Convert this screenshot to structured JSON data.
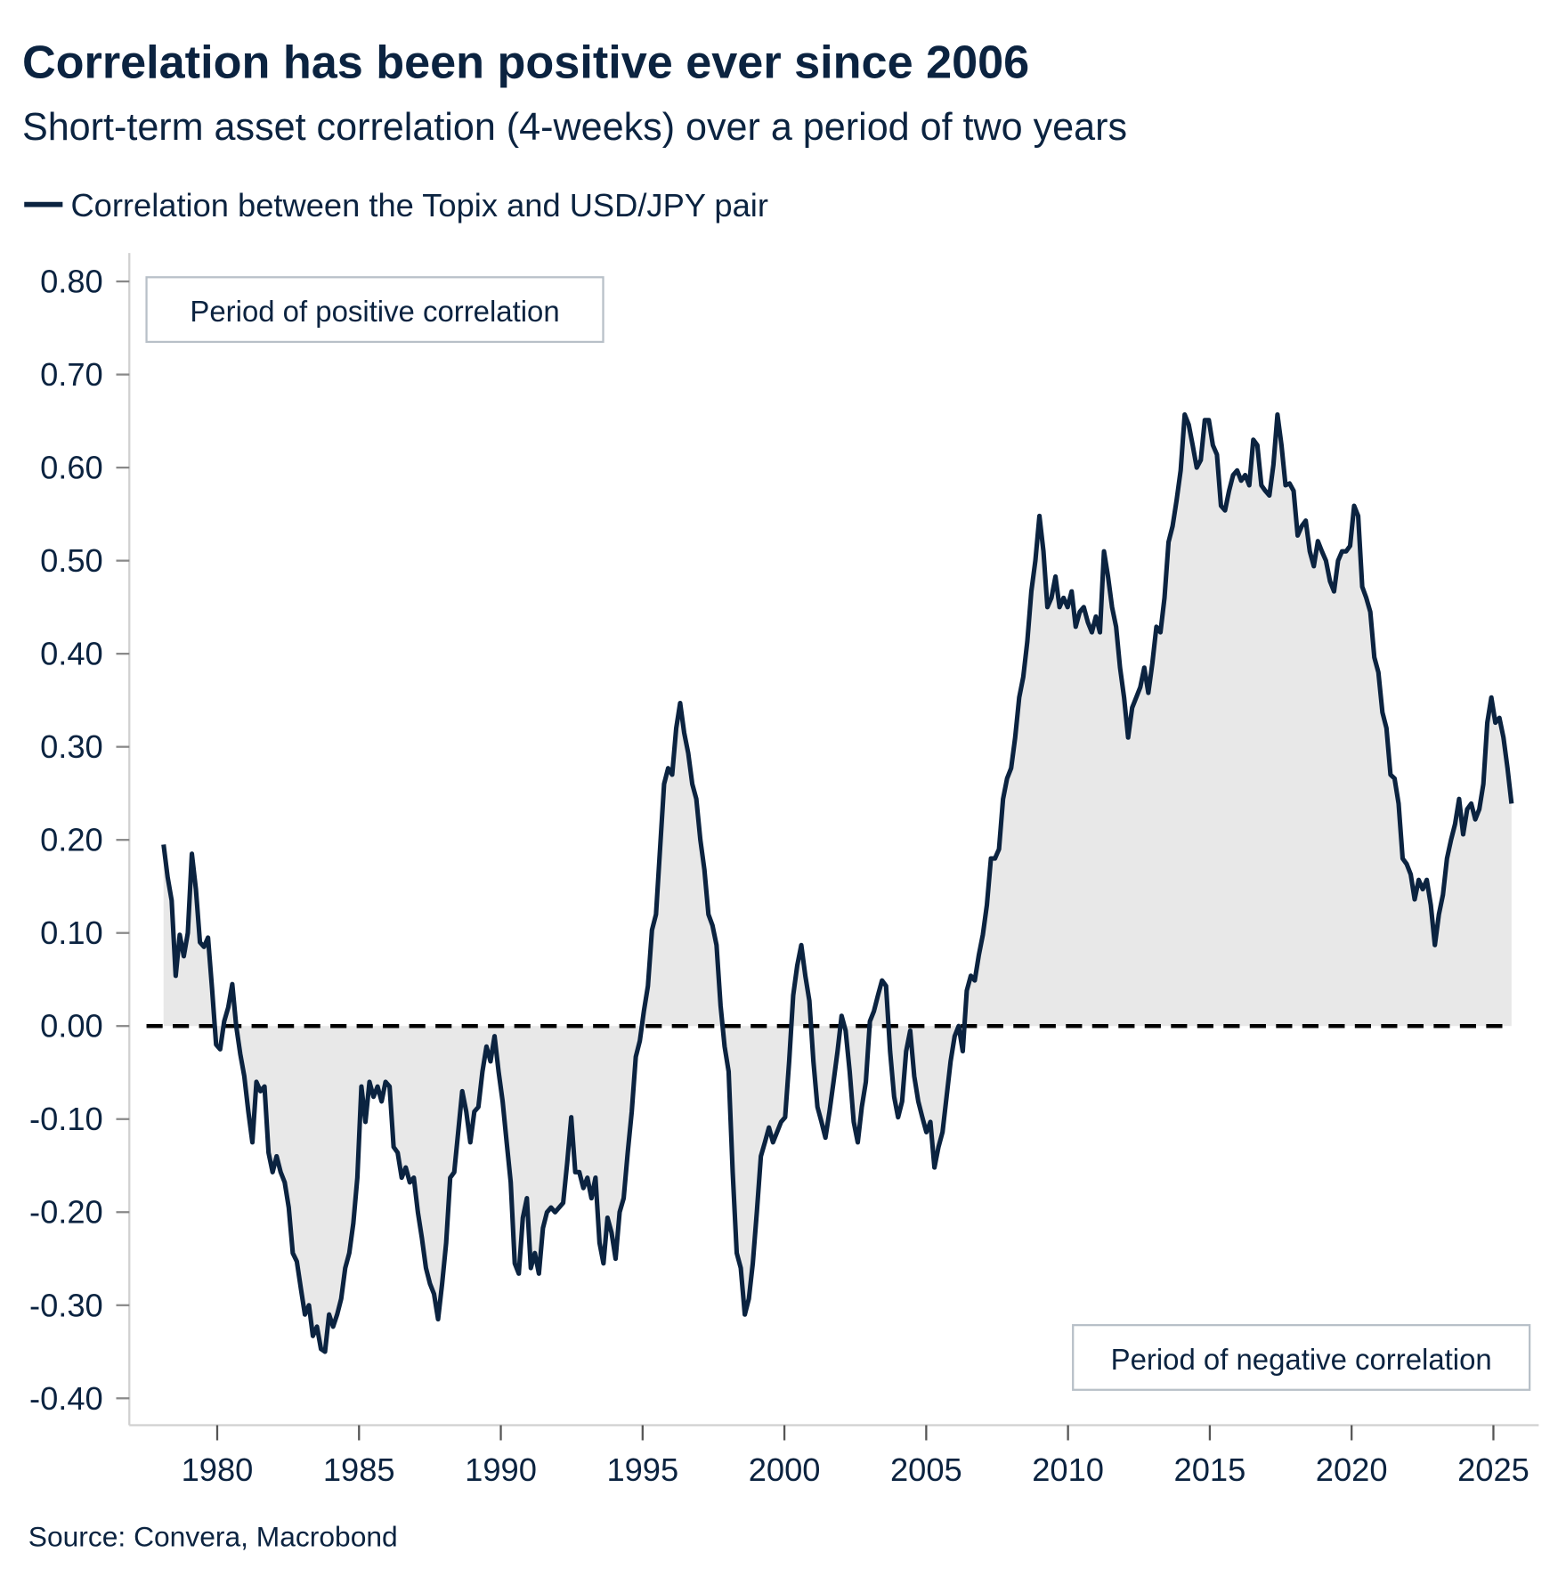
{
  "title": "Correlation has been positive ever since 2006",
  "subtitle": "Short-term asset correlation (4-weeks) over a period of two years",
  "source": "Source: Convera, Macrobond",
  "colors": {
    "line": "#0b2340",
    "fill": "#e8e8e8",
    "zero_line": "#000000",
    "axis": "#d0d0d0",
    "annotation_border": "#b8c0c8"
  },
  "chart_data": {
    "type": "area",
    "title": "Correlation has been positive ever since 2006",
    "xlabel": "",
    "ylabel": "",
    "xlim": [
      1978,
      2026
    ],
    "ylim": [
      -0.4,
      0.8
    ],
    "grid": false,
    "legend_placement": "top-left",
    "x_ticks": [
      "1980",
      "1985",
      "1990",
      "1995",
      "2000",
      "2005",
      "2010",
      "2015",
      "2020",
      "2025"
    ],
    "y_ticks": [
      "0.80",
      "0.70",
      "0.60",
      "0.50",
      "0.40",
      "0.30",
      "0.20",
      "0.10",
      "0.00",
      "-0.10",
      "-0.20",
      "-0.30",
      "-0.40"
    ],
    "reference_line": {
      "y": 0,
      "style": "dashed"
    },
    "annotations": [
      "Period of positive correlation",
      "Period of negative correlation"
    ],
    "series": [
      {
        "name": "Correlation between the Topix and USD/JPY pair",
        "start": 1978.11,
        "end": 2025.64,
        "values": [
          0.195,
          0.16,
          0.135,
          0.054,
          0.098,
          0.075,
          0.1,
          0.185,
          0.147,
          0.09,
          0.085,
          0.095,
          0.04,
          -0.02,
          -0.025,
          0.005,
          0.02,
          0.045,
          0.0,
          -0.03,
          -0.054,
          -0.092,
          -0.125,
          -0.06,
          -0.07,
          -0.065,
          -0.136,
          -0.157,
          -0.14,
          -0.157,
          -0.168,
          -0.195,
          -0.244,
          -0.253,
          -0.282,
          -0.31,
          -0.3,
          -0.333,
          -0.323,
          -0.347,
          -0.35,
          -0.31,
          -0.323,
          -0.31,
          -0.293,
          -0.26,
          -0.244,
          -0.212,
          -0.163,
          -0.065,
          -0.103,
          -0.06,
          -0.076,
          -0.065,
          -0.081,
          -0.06,
          -0.065,
          -0.13,
          -0.136,
          -0.163,
          -0.152,
          -0.168,
          -0.163,
          -0.2,
          -0.228,
          -0.26,
          -0.277,
          -0.288,
          -0.315,
          -0.277,
          -0.233,
          -0.163,
          -0.157,
          -0.114,
          -0.07,
          -0.092,
          -0.125,
          -0.092,
          -0.087,
          -0.049,
          -0.022,
          -0.038,
          -0.011,
          -0.049,
          -0.081,
          -0.125,
          -0.168,
          -0.255,
          -0.266,
          -0.206,
          -0.185,
          -0.26,
          -0.244,
          -0.266,
          -0.217,
          -0.2,
          -0.195,
          -0.2,
          -0.195,
          -0.19,
          -0.147,
          -0.098,
          -0.157,
          -0.157,
          -0.174,
          -0.163,
          -0.185,
          -0.163,
          -0.233,
          -0.255,
          -0.206,
          -0.222,
          -0.25,
          -0.2,
          -0.185,
          -0.136,
          -0.092,
          -0.033,
          -0.016,
          0.016,
          0.043,
          0.103,
          0.12,
          0.19,
          0.26,
          0.277,
          0.27,
          0.32,
          0.347,
          0.315,
          0.293,
          0.26,
          0.244,
          0.2,
          0.168,
          0.12,
          0.108,
          0.087,
          0.022,
          -0.022,
          -0.049,
          -0.157,
          -0.244,
          -0.26,
          -0.31,
          -0.293,
          -0.255,
          -0.2,
          -0.14,
          -0.125,
          -0.109,
          -0.125,
          -0.114,
          -0.103,
          -0.098,
          -0.038,
          0.033,
          0.065,
          0.087,
          0.054,
          0.027,
          -0.038,
          -0.087,
          -0.103,
          -0.12,
          -0.092,
          -0.06,
          -0.027,
          0.011,
          -0.005,
          -0.049,
          -0.103,
          -0.125,
          -0.087,
          -0.06,
          0.005,
          0.016,
          0.033,
          0.049,
          0.043,
          -0.027,
          -0.076,
          -0.098,
          -0.081,
          -0.027,
          -0.005,
          -0.054,
          -0.081,
          -0.098,
          -0.114,
          -0.103,
          -0.152,
          -0.13,
          -0.114,
          -0.076,
          -0.038,
          -0.011,
          0.0,
          -0.027,
          0.038,
          0.054,
          0.049,
          0.076,
          0.098,
          0.13,
          0.18,
          0.18,
          0.19,
          0.244,
          0.266,
          0.277,
          0.31,
          0.353,
          0.375,
          0.413,
          0.467,
          0.5,
          0.548,
          0.51,
          0.45,
          0.46,
          0.483,
          0.45,
          0.46,
          0.45,
          0.467,
          0.429,
          0.445,
          0.45,
          0.434,
          0.423,
          0.44,
          0.423,
          0.51,
          0.483,
          0.45,
          0.429,
          0.385,
          0.353,
          0.31,
          0.342,
          0.353,
          0.364,
          0.385,
          0.358,
          0.39,
          0.429,
          0.423,
          0.46,
          0.52,
          0.537,
          0.565,
          0.597,
          0.657,
          0.646,
          0.624,
          0.6,
          0.608,
          0.651,
          0.651,
          0.624,
          0.614,
          0.559,
          0.554,
          0.575,
          0.592,
          0.597,
          0.586,
          0.592,
          0.581,
          0.63,
          0.624,
          0.581,
          0.575,
          0.57,
          0.603,
          0.657,
          0.624,
          0.581,
          0.583,
          0.575,
          0.527,
          0.537,
          0.543,
          0.51,
          0.494,
          0.521,
          0.51,
          0.5,
          0.478,
          0.467,
          0.5,
          0.51,
          0.51,
          0.516,
          0.559,
          0.548,
          0.472,
          0.46,
          0.445,
          0.396,
          0.38,
          0.337,
          0.32,
          0.27,
          0.266,
          0.239,
          0.18,
          0.174,
          0.163,
          0.136,
          0.157,
          0.147,
          0.157,
          0.13,
          0.087,
          0.12,
          0.141,
          0.18,
          0.2,
          0.217,
          0.244,
          0.206,
          0.233,
          0.239,
          0.222,
          0.233,
          0.26,
          0.326,
          0.353,
          0.326,
          0.331,
          0.31,
          0.277,
          0.239
        ]
      }
    ]
  }
}
